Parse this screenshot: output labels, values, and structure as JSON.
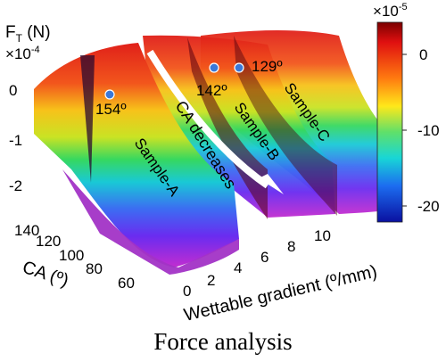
{
  "chart_data": {
    "type": "surface",
    "caption": "Force analysis",
    "z_axis": {
      "label_main": "F",
      "label_sub": "T",
      "label_unit": " (N)",
      "multiplier_prefix": "×",
      "multiplier_base": "10",
      "multiplier_exp": "-4",
      "ticks": [
        "0",
        "-1",
        "-2"
      ]
    },
    "ca_axis": {
      "label": "CA (º)",
      "ticks": [
        "140",
        "120",
        "100",
        "80",
        "60"
      ]
    },
    "gradient_axis": {
      "label": "Wettable gradient (º/mm)",
      "ticks": [
        "0",
        "2",
        "4",
        "6",
        "8",
        "10"
      ]
    },
    "colorbar": {
      "multiplier_prefix": "×",
      "multiplier_base": "10",
      "multiplier_exp": "-5",
      "ticks": [
        "0",
        "-10",
        "-20"
      ]
    },
    "samples": [
      {
        "name": "Sample-A",
        "ca_label": "154º"
      },
      {
        "name": "Sample-B",
        "ca_label": "142º"
      },
      {
        "name": "Sample-C",
        "ca_label": "129º"
      }
    ],
    "annotation": "CA decreases"
  }
}
